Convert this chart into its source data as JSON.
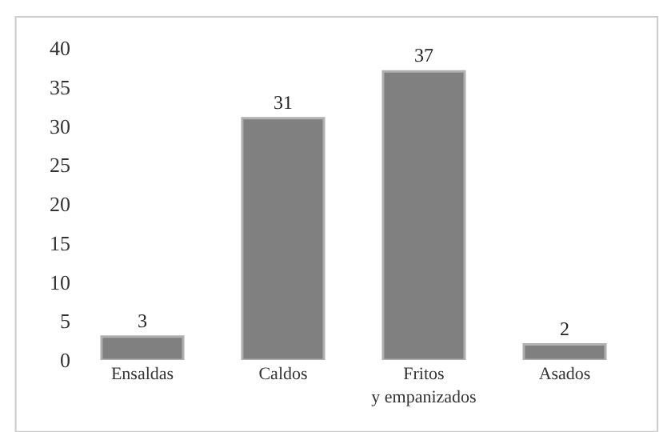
{
  "chart_data": {
    "type": "bar",
    "categories": [
      "Ensaldas",
      "Caldos",
      "Fritos y empanizados",
      "Asados"
    ],
    "values": [
      3,
      31,
      37,
      2
    ],
    "color": "#808080",
    "data_labels": true,
    "ylim": [
      0,
      40
    ],
    "yticks": [
      0,
      5,
      10,
      15,
      20,
      25,
      30,
      35,
      40
    ]
  }
}
